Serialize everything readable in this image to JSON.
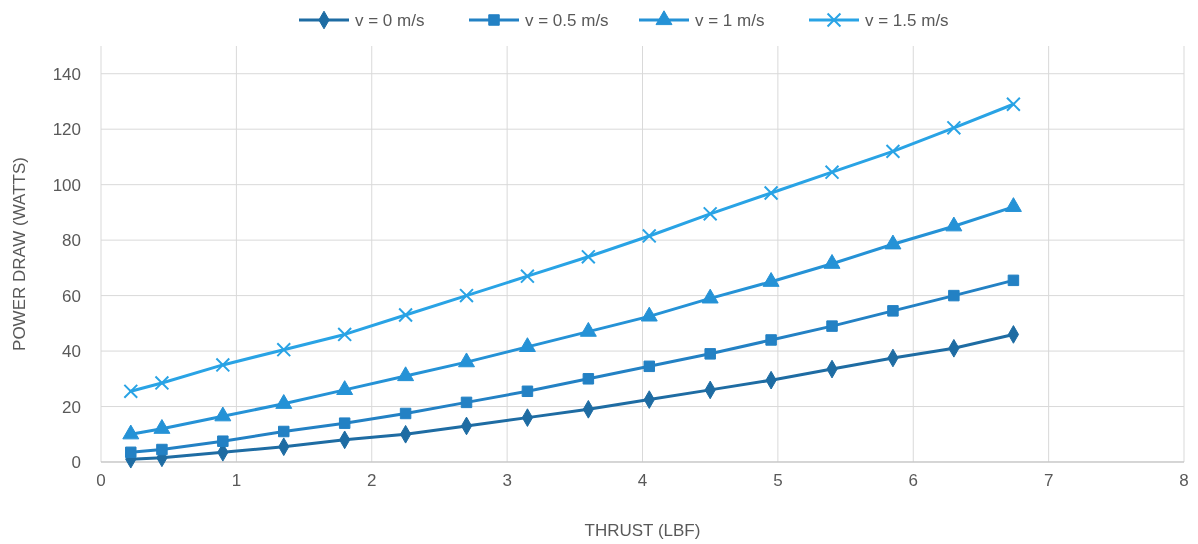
{
  "chart_data": {
    "type": "line",
    "xlabel": "THRUST (LBF)",
    "ylabel": "POWER DRAW (WATTS)",
    "x": [
      0.22,
      0.45,
      0.9,
      1.35,
      1.8,
      2.25,
      2.7,
      3.15,
      3.6,
      4.05,
      4.5,
      4.95,
      5.4,
      5.85,
      6.3,
      6.74
    ],
    "series": [
      {
        "name": "v = 0 m/s",
        "color": "#1e6ca3",
        "marker": "diamond",
        "values": [
          1,
          1.5,
          3.5,
          5.5,
          8,
          10,
          13,
          16,
          19,
          22.5,
          26,
          29.5,
          33.5,
          37.5,
          41,
          46
        ]
      },
      {
        "name": "v = 0.5 m/s",
        "color": "#2381c4",
        "marker": "square",
        "values": [
          3.5,
          4.5,
          7.5,
          11,
          14,
          17.5,
          21.5,
          25.5,
          30,
          34.5,
          39,
          44,
          49,
          54.5,
          60,
          65.5
        ]
      },
      {
        "name": "v = 1 m/s",
        "color": "#2592d6",
        "marker": "triangle",
        "values": [
          10,
          12,
          16.5,
          21,
          26,
          31,
          36,
          41.5,
          47,
          52.5,
          59,
          65,
          71.5,
          78.5,
          85,
          92
        ]
      },
      {
        "name": "v = 1.5 m/s",
        "color": "#29a3e5",
        "marker": "cross",
        "values": [
          25.5,
          28.5,
          35,
          40.5,
          46,
          53,
          60,
          67,
          74,
          81.5,
          89.5,
          97,
          104.5,
          112,
          120.5,
          129
        ]
      }
    ],
    "xlim": [
      0,
      8
    ],
    "xticks": [
      0,
      1,
      2,
      3,
      4,
      5,
      6,
      7,
      8
    ],
    "ylim": [
      0,
      150
    ],
    "yticks": [
      0,
      20,
      40,
      60,
      80,
      100,
      120,
      140
    ],
    "grid": true,
    "legend": "top",
    "line_style": "solid"
  }
}
